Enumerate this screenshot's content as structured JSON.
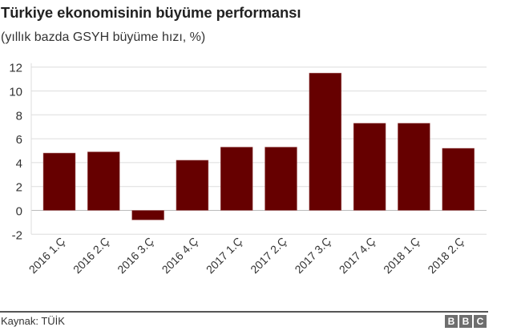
{
  "header": {
    "title": "Türkiye ekonomisinin büyüme performansı",
    "subtitle": "(yıllık bazda GSYH büyüme hızı, %)"
  },
  "footer": {
    "source": "Kaynak: TÜİK",
    "logo_letters": [
      "B",
      "B",
      "C"
    ]
  },
  "colors": {
    "bar": "#660000",
    "grid": "#dddddd",
    "text": "#333333",
    "logo_bg": "#6e6e6e"
  },
  "chart_data": {
    "type": "bar",
    "title": "Türkiye ekonomisinin büyüme performansı",
    "subtitle": "(yıllık bazda GSYH büyüme hızı, %)",
    "xlabel": "",
    "ylabel": "",
    "categories": [
      "2016 1.Ç",
      "2016 2.Ç",
      "2016 3.Ç",
      "2016 4.Ç",
      "2017 1.Ç",
      "2017 2.Ç",
      "2017 3.Ç",
      "2017 4.Ç",
      "2018 1.Ç",
      "2018 2.Ç"
    ],
    "values": [
      4.8,
      4.9,
      -0.8,
      4.2,
      5.3,
      5.3,
      11.5,
      7.3,
      7.3,
      5.2
    ],
    "ylim": [
      -2,
      12
    ],
    "yticks": [
      -2,
      0,
      2,
      4,
      6,
      8,
      10,
      12
    ],
    "grid": true,
    "legend": null,
    "source": "Kaynak: TÜİK"
  }
}
